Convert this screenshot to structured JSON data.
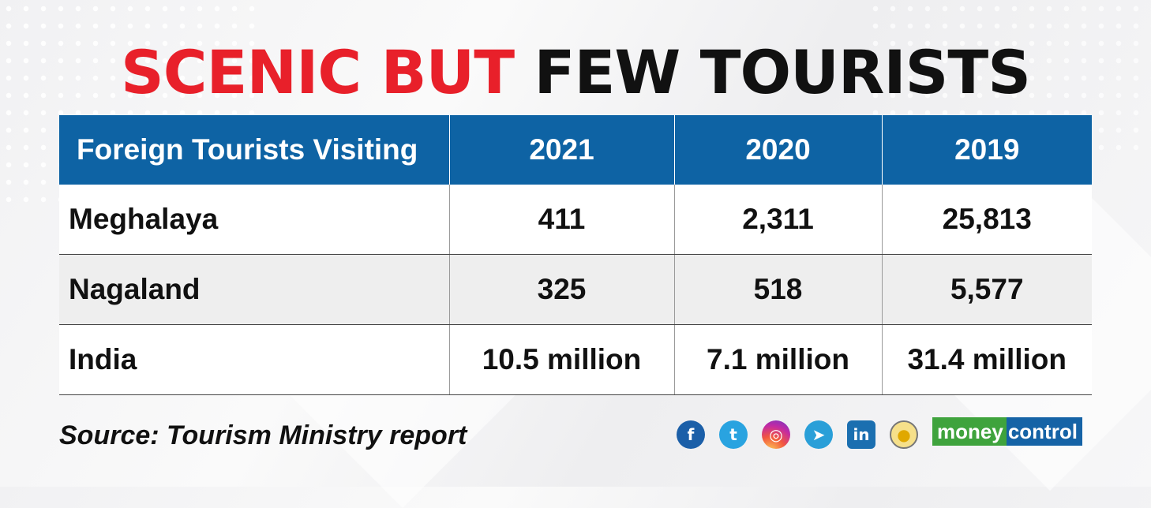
{
  "title": {
    "part1": "SCENIC BUT",
    "part2": "FEW TOURISTS"
  },
  "chart_data": {
    "type": "table",
    "columns": [
      "Foreign Tourists Visiting",
      "2021",
      "2020",
      "2019"
    ],
    "rows": [
      [
        "Meghalaya",
        "411",
        "2,311",
        "25,813"
      ],
      [
        "Nagaland",
        "325",
        "518",
        "5,577"
      ],
      [
        "India",
        "10.5 million",
        "7.1 million",
        "31.4 million"
      ]
    ]
  },
  "source": "Source: Tourism Ministry report",
  "social_icons": [
    {
      "name": "facebook-icon",
      "glyph": "f"
    },
    {
      "name": "twitter-icon",
      "glyph": "t"
    },
    {
      "name": "instagram-icon",
      "glyph": "◎"
    },
    {
      "name": "telegram-icon",
      "glyph": "➤"
    },
    {
      "name": "linkedin-icon",
      "glyph": "in"
    },
    {
      "name": "koo-icon",
      "glyph": "●"
    }
  ],
  "logo": {
    "part1": "money",
    "part2": "control"
  },
  "colors": {
    "accent_red": "#e8202a",
    "header_blue": "#0e63a4",
    "logo_green": "#3fa33d",
    "logo_blue": "#1563a6"
  }
}
